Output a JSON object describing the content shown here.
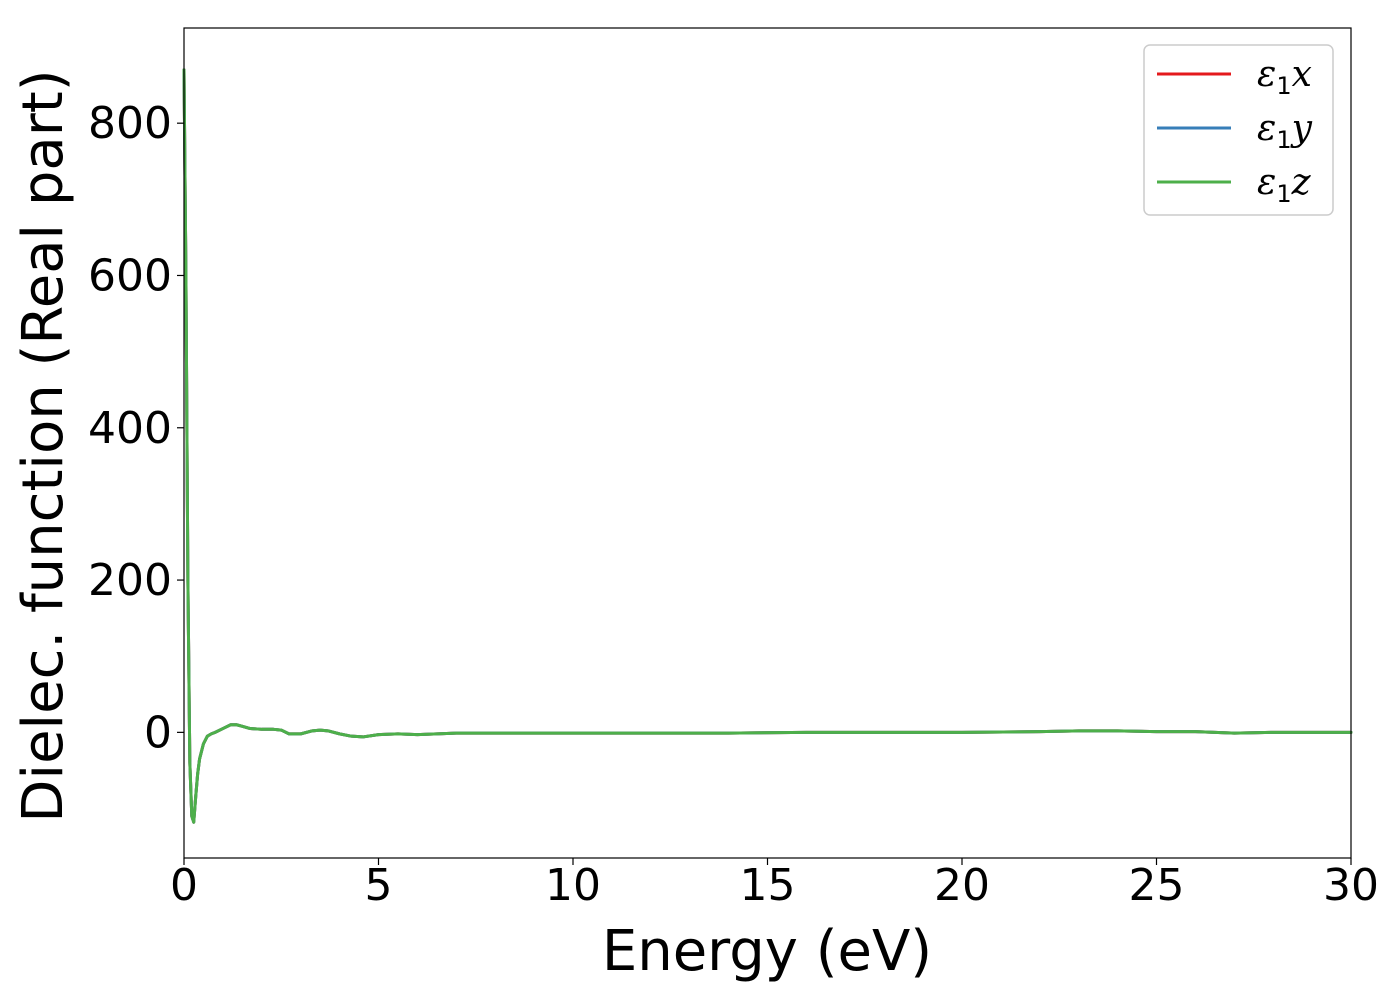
{
  "chart_data": {
    "type": "line",
    "title": "",
    "xlabel": "Energy (eV)",
    "ylabel": "Dielec. function (Real part)",
    "xlim": [
      0,
      30
    ],
    "ylim": [
      -165,
      925
    ],
    "xticks": [
      0,
      5,
      10,
      15,
      20,
      25,
      30
    ],
    "yticks": [
      0,
      200,
      400,
      600,
      800
    ],
    "grid": false,
    "legend_position": "top-right",
    "series": [
      {
        "name": "ε1x",
        "name_base": "ε",
        "name_sub": "1",
        "name_var": "x",
        "color": "#e41a1c",
        "x": [
          0,
          0.05,
          0.1,
          0.15,
          0.2,
          0.25,
          0.3,
          0.35,
          0.4,
          0.5,
          0.6,
          0.7,
          0.8,
          1.0,
          1.2,
          1.35,
          1.5,
          1.7,
          2.0,
          2.3,
          2.5,
          2.7,
          3.0,
          3.3,
          3.5,
          3.7,
          4.0,
          4.3,
          4.6,
          5.0,
          5.5,
          6.0,
          6.5,
          7.0,
          7.5,
          8.0,
          9.0,
          10.0,
          12.0,
          14.0,
          16.0,
          18.0,
          20.0,
          22.0,
          23.0,
          24.0,
          25.0,
          26.0,
          26.5,
          27.0,
          28.0,
          29.0,
          30.0
        ],
        "y": [
          870,
          600,
          200,
          -40,
          -110,
          -118,
          -85,
          -55,
          -35,
          -15,
          -5,
          -2,
          0,
          5,
          10,
          10,
          8,
          5,
          4,
          4,
          3,
          -2,
          -2,
          2,
          3,
          2,
          -2,
          -5,
          -6,
          -3,
          -2,
          -3,
          -2,
          -1,
          -1,
          -1,
          -1,
          -1,
          -1,
          -1,
          0,
          0,
          0,
          1,
          2,
          2,
          1,
          1,
          0,
          -1,
          0,
          0,
          0
        ]
      },
      {
        "name": "ε1y",
        "name_base": "ε",
        "name_sub": "1",
        "name_var": "y",
        "color": "#377eb8",
        "x": [
          0,
          0.05,
          0.1,
          0.15,
          0.2,
          0.25,
          0.3,
          0.35,
          0.4,
          0.5,
          0.6,
          0.7,
          0.8,
          1.0,
          1.2,
          1.35,
          1.5,
          1.7,
          2.0,
          2.3,
          2.5,
          2.7,
          3.0,
          3.3,
          3.5,
          3.7,
          4.0,
          4.3,
          4.6,
          5.0,
          5.5,
          6.0,
          6.5,
          7.0,
          7.5,
          8.0,
          9.0,
          10.0,
          12.0,
          14.0,
          16.0,
          18.0,
          20.0,
          22.0,
          23.0,
          24.0,
          25.0,
          26.0,
          26.5,
          27.0,
          28.0,
          29.0,
          30.0
        ],
        "y": [
          870,
          600,
          200,
          -40,
          -110,
          -118,
          -85,
          -55,
          -35,
          -15,
          -5,
          -2,
          0,
          5,
          10,
          10,
          8,
          5,
          4,
          4,
          3,
          -2,
          -2,
          2,
          3,
          2,
          -2,
          -5,
          -6,
          -3,
          -2,
          -3,
          -2,
          -1,
          -1,
          -1,
          -1,
          -1,
          -1,
          -1,
          0,
          0,
          0,
          1,
          2,
          2,
          1,
          1,
          0,
          -1,
          0,
          0,
          0
        ]
      },
      {
        "name": "ε1z",
        "name_base": "ε",
        "name_sub": "1",
        "name_var": "z",
        "color": "#4daf4a",
        "x": [
          0,
          0.05,
          0.1,
          0.15,
          0.2,
          0.25,
          0.3,
          0.35,
          0.4,
          0.5,
          0.6,
          0.7,
          0.8,
          1.0,
          1.2,
          1.35,
          1.5,
          1.7,
          2.0,
          2.3,
          2.5,
          2.7,
          3.0,
          3.3,
          3.5,
          3.7,
          4.0,
          4.3,
          4.6,
          5.0,
          5.5,
          6.0,
          6.5,
          7.0,
          7.5,
          8.0,
          9.0,
          10.0,
          12.0,
          14.0,
          16.0,
          18.0,
          20.0,
          22.0,
          23.0,
          24.0,
          25.0,
          26.0,
          26.5,
          27.0,
          28.0,
          29.0,
          30.0
        ],
        "y": [
          870,
          600,
          200,
          -40,
          -110,
          -118,
          -85,
          -55,
          -35,
          -15,
          -5,
          -2,
          0,
          5,
          10,
          10,
          8,
          5,
          4,
          4,
          3,
          -2,
          -2,
          2,
          3,
          2,
          -2,
          -5,
          -6,
          -3,
          -2,
          -3,
          -2,
          -1,
          -1,
          -1,
          -1,
          -1,
          -1,
          -1,
          0,
          0,
          0,
          1,
          2,
          2,
          1,
          1,
          0,
          -1,
          0,
          0,
          0
        ]
      }
    ]
  }
}
